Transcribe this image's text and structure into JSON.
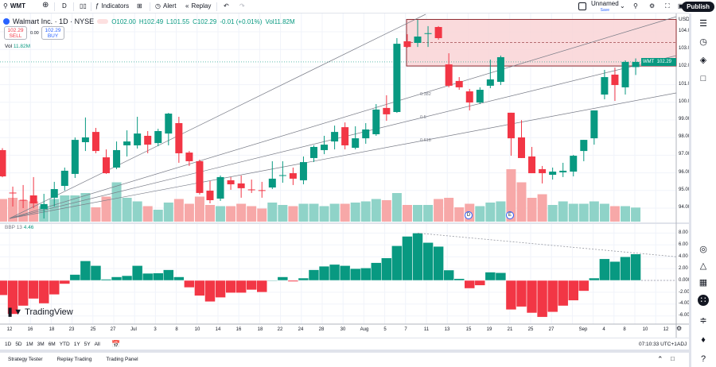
{
  "toolbar": {
    "symbol": "WMT",
    "interval": "D",
    "indicators": "Indicators",
    "alert": "Alert",
    "replay": "Replay",
    "layout_name": "Unnamed",
    "layout_save": "Save",
    "publish": "Publish"
  },
  "legend": {
    "title": "Walmart Inc. · 1D · NYSE",
    "open": "O102.00",
    "high": "H102.49",
    "low": "L101.55",
    "close": "C102.29",
    "change": "-0.01 (+0.01%)",
    "vol": "Vol11.82M",
    "sell_price": "102.29",
    "sell_label": "SELL",
    "spread": "0.00",
    "buy_price": "102.29",
    "buy_label": "BUY",
    "vol_label": "Vol",
    "vol_value": "11.82M"
  },
  "price_axis": {
    "currency": "USD",
    "ticks": [
      "104.00",
      "103.00",
      "102.00",
      "101.00",
      "100.00",
      "99.00",
      "98.00",
      "97.00",
      "96.00",
      "95.00",
      "94.00"
    ],
    "price_tag_symbol": "WMT",
    "price_tag_value": "102.29"
  },
  "oscillator": {
    "name": "BBP 13",
    "value": "4.46",
    "ticks": [
      "8.00",
      "6.00",
      "4.00",
      "2.00",
      "0.0000",
      "-2.00",
      "-4.00",
      "-6.00"
    ]
  },
  "fib_labels": [
    "0.382",
    "0.5",
    "0.618"
  ],
  "events": [
    "D",
    "E"
  ],
  "time_axis": [
    "12",
    "16",
    "18",
    "23",
    "25",
    "27",
    "Jul",
    "3",
    "8",
    "10",
    "14",
    "16",
    "18",
    "22",
    "24",
    "28",
    "30",
    "Aug",
    "5",
    "7",
    "11",
    "13",
    "15",
    "19",
    "21",
    "25",
    "27",
    "Sep",
    "4",
    "8",
    "10",
    "12"
  ],
  "ranges": [
    "1D",
    "5D",
    "1M",
    "3M",
    "6M",
    "YTD",
    "1Y",
    "5Y",
    "All"
  ],
  "clock": "07:10:33 UTC+1",
  "adj": "ADJ",
  "bottom_tabs": [
    "Strategy Tester",
    "Replay Trading",
    "Trading Panel"
  ],
  "brand": "TradingView",
  "colors": {
    "up": "#089981",
    "down": "#F23645",
    "up_vol": "#8fd3c8",
    "down_vol": "#f7a8a8",
    "zone": "#f9d3d6",
    "zone_border": "#8e2a2f"
  },
  "chart_data": {
    "type": "candlestick",
    "ohlc": [
      [
        97.29,
        97.4,
        95.75,
        95.8
      ],
      [
        94.88,
        95.22,
        94.09,
        94.86
      ],
      [
        94.47,
        95.31,
        94.0,
        94.45
      ],
      [
        94.72,
        95.76,
        94.0,
        94.27
      ],
      [
        93.95,
        94.81,
        93.41,
        94.23
      ],
      [
        94.59,
        95.49,
        94.09,
        95.08
      ],
      [
        95.26,
        96.3,
        95.0,
        96.12
      ],
      [
        95.94,
        98.01,
        95.71,
        97.87
      ],
      [
        97.74,
        99.14,
        97.24,
        98.01
      ],
      [
        98.32,
        98.55,
        97.11,
        97.24
      ],
      [
        96.88,
        97.33,
        95.94,
        95.98
      ],
      [
        96.3,
        97.78,
        96.21,
        97.29
      ],
      [
        97.56,
        98.41,
        96.93,
        97.78
      ],
      [
        97.56,
        99.18,
        97.38,
        98.23
      ],
      [
        98.1,
        98.37,
        97.11,
        97.6
      ],
      [
        97.69,
        98.5,
        97.51,
        98.37
      ],
      [
        98.23,
        99.4,
        97.56,
        99.36
      ],
      [
        98.82,
        99.18,
        96.57,
        97.11
      ],
      [
        97.15,
        97.24,
        96.39,
        96.66
      ],
      [
        96.66,
        96.75,
        94.77,
        94.86
      ],
      [
        94.99,
        95.53,
        94.27,
        94.45
      ],
      [
        94.54,
        95.85,
        94.41,
        95.76
      ],
      [
        95.58,
        95.76,
        95.04,
        95.35
      ],
      [
        95.4,
        95.85,
        94.59,
        95.13
      ],
      [
        95.06,
        95.62,
        94.86,
        95.04
      ],
      [
        95.02,
        95.49,
        94.59,
        95.0
      ],
      [
        95.17,
        96.66,
        95.08,
        95.67
      ],
      [
        95.85,
        96.66,
        95.44,
        95.87
      ],
      [
        95.98,
        96.3,
        95.31,
        95.67
      ],
      [
        95.58,
        96.93,
        95.35,
        96.61
      ],
      [
        96.84,
        97.56,
        96.61,
        97.47
      ],
      [
        97.29,
        98.1,
        97.06,
        97.6
      ],
      [
        97.78,
        98.68,
        97.33,
        98.32
      ],
      [
        98.59,
        98.86,
        97.33,
        97.56
      ],
      [
        97.42,
        98.64,
        97.33,
        97.96
      ],
      [
        97.96,
        98.82,
        97.65,
        98.46
      ],
      [
        98.19,
        99.9,
        98.1,
        99.59
      ],
      [
        99.68,
        100.4,
        98.95,
        99.32
      ],
      [
        99.45,
        103.64,
        99.4,
        103.32
      ],
      [
        103.46,
        103.86,
        103.1,
        103.14
      ],
      [
        103.37,
        104.68,
        103.14,
        103.73
      ],
      [
        103.9,
        104.32,
        103.14,
        103.92
      ],
      [
        104.27,
        104.32,
        103.55,
        103.64
      ],
      [
        102.15,
        102.78,
        100.85,
        100.94
      ],
      [
        101.21,
        101.43,
        100.71,
        100.85
      ],
      [
        100.62,
        100.76,
        99.54,
        99.99
      ],
      [
        99.99,
        100.85,
        99.9,
        100.71
      ],
      [
        100.94,
        102.42,
        100.8,
        101.3
      ],
      [
        101.16,
        102.65,
        100.98,
        102.56
      ],
      [
        99.41,
        99.41,
        96.97,
        97.96
      ],
      [
        98.01,
        98.99,
        96.84,
        96.84
      ],
      [
        96.93,
        97.47,
        95.98,
        95.98
      ],
      [
        96.21,
        96.39,
        95.4,
        95.98
      ],
      [
        95.89,
        96.3,
        95.62,
        96.07
      ],
      [
        96.03,
        96.57,
        95.76,
        96.12
      ],
      [
        96.07,
        97.02,
        95.8,
        96.97
      ],
      [
        97.24,
        97.87,
        96.66,
        97.87
      ],
      [
        97.96,
        99.54,
        97.6,
        99.54
      ],
      [
        100.44,
        101.84,
        100.17,
        101.43
      ],
      [
        101.57,
        101.97,
        100.08,
        100.98
      ],
      [
        100.85,
        102.38,
        100.44,
        102.29
      ],
      [
        102.0,
        102.49,
        101.55,
        102.29
      ]
    ],
    "volume_millions": [
      19,
      20,
      18,
      17,
      13,
      19,
      22,
      22,
      24,
      12,
      21,
      33,
      20,
      17,
      13,
      10,
      16,
      19,
      15,
      21,
      14,
      13,
      13,
      15,
      13,
      11,
      16,
      14,
      13,
      15,
      15,
      13,
      15,
      15,
      16,
      17,
      19,
      18,
      24,
      14,
      14,
      14,
      19,
      20,
      12,
      15,
      13,
      16,
      17,
      44,
      33,
      20,
      23,
      14,
      17,
      15,
      15,
      17,
      15,
      13,
      13,
      11.82
    ],
    "bbp": [
      -2.5,
      -5.7,
      -4.3,
      -3.1,
      -3.9,
      -2.4,
      -0.6,
      1.0,
      3.3,
      2.5,
      0.2,
      0.6,
      0.8,
      2.5,
      1.2,
      1.25,
      1.8,
      0.6,
      -1.2,
      -2.6,
      -3.6,
      -2.9,
      -2.1,
      -2.1,
      -1.6,
      -2.0,
      0.0,
      0.6,
      -0.2,
      0.4,
      1.8,
      2.4,
      2.7,
      2.5,
      2.0,
      2.1,
      3.0,
      3.8,
      5.85,
      7.45,
      8.0,
      6.4,
      5.75,
      1.75,
      0.3,
      -1.35,
      -0.85,
      1.4,
      1.3,
      -4.95,
      -4.45,
      -5.5,
      -6.2,
      -5.35,
      -4.3,
      -3.4,
      -1.8,
      0.4,
      3.65,
      3.2,
      4.0,
      4.46
    ],
    "price_range": [
      93.5,
      104.7
    ],
    "bbp_range": [
      -7,
      9
    ],
    "zone": {
      "top": 104.7,
      "bottom": 102.06,
      "mid": 103.4
    },
    "last_price": 102.29
  }
}
